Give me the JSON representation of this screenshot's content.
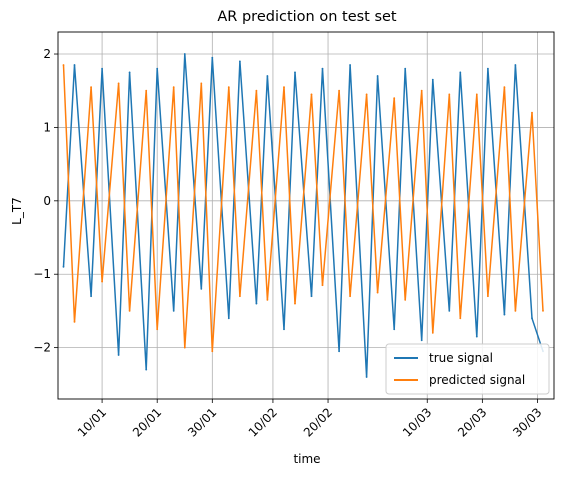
{
  "chart_data": {
    "type": "line",
    "title": "AR prediction on test set",
    "xlabel": "time",
    "ylabel": "L_T7",
    "ylim": [
      -2.7,
      2.3
    ],
    "xlim": [
      "2014-01-02",
      "2014-04-02"
    ],
    "grid": true,
    "legend_position": "lower right",
    "x_ticks": [
      {
        "date": "2014-01-10",
        "label": "10/01"
      },
      {
        "date": "2014-01-20",
        "label": "20/01"
      },
      {
        "date": "2014-01-30",
        "label": "30/01"
      },
      {
        "date": "2014-02-10",
        "label": "10/02"
      },
      {
        "date": "2014-02-20",
        "label": "20/02"
      },
      {
        "date": "2014-03-10",
        "label": "10/03"
      },
      {
        "date": "2014-03-20",
        "label": "20/03"
      },
      {
        "date": "2014-03-30",
        "label": "30/03"
      }
    ],
    "y_ticks": [
      {
        "value": 2,
        "label": "2"
      },
      {
        "value": 1,
        "label": "1"
      },
      {
        "value": 0,
        "label": "0"
      },
      {
        "value": -1,
        "label": "−1"
      },
      {
        "value": -2,
        "label": "−2"
      }
    ],
    "series": [
      {
        "name": "true signal",
        "color": "#1f77b4",
        "x": [
          "2014-01-03",
          "2014-01-05",
          "2014-01-08",
          "2014-01-10",
          "2014-01-13",
          "2014-01-15",
          "2014-01-18",
          "2014-01-20",
          "2014-01-23",
          "2014-01-25",
          "2014-01-28",
          "2014-01-30",
          "2014-02-02",
          "2014-02-04",
          "2014-02-07",
          "2014-02-09",
          "2014-02-12",
          "2014-02-14",
          "2014-02-17",
          "2014-02-19",
          "2014-02-22",
          "2014-02-24",
          "2014-02-27",
          "2014-03-01",
          "2014-03-04",
          "2014-03-06",
          "2014-03-09",
          "2014-03-11",
          "2014-03-14",
          "2014-03-16",
          "2014-03-19",
          "2014-03-21",
          "2014-03-24",
          "2014-03-26",
          "2014-03-29",
          "2014-03-31"
        ],
        "values": [
          -0.9,
          1.85,
          -1.3,
          1.8,
          -2.1,
          1.75,
          -2.3,
          1.8,
          -1.5,
          2.0,
          -1.2,
          1.95,
          -1.6,
          1.9,
          -1.4,
          1.7,
          -1.75,
          1.75,
          -1.3,
          1.8,
          -2.05,
          1.85,
          -2.4,
          1.7,
          -1.75,
          1.8,
          -1.9,
          1.65,
          -1.5,
          1.75,
          -1.85,
          1.8,
          -1.55,
          1.85,
          -1.6,
          -2.05
        ]
      },
      {
        "name": "predicted signal",
        "color": "#ff7f0e",
        "x": [
          "2014-01-03",
          "2014-01-05",
          "2014-01-08",
          "2014-01-10",
          "2014-01-13",
          "2014-01-15",
          "2014-01-18",
          "2014-01-20",
          "2014-01-23",
          "2014-01-25",
          "2014-01-28",
          "2014-01-30",
          "2014-02-02",
          "2014-02-04",
          "2014-02-07",
          "2014-02-09",
          "2014-02-12",
          "2014-02-14",
          "2014-02-17",
          "2014-02-19",
          "2014-02-22",
          "2014-02-24",
          "2014-02-27",
          "2014-03-01",
          "2014-03-04",
          "2014-03-06",
          "2014-03-09",
          "2014-03-11",
          "2014-03-14",
          "2014-03-16",
          "2014-03-19",
          "2014-03-21",
          "2014-03-24",
          "2014-03-26",
          "2014-03-29",
          "2014-03-31"
        ],
        "values": [
          1.85,
          -1.65,
          1.55,
          -1.1,
          1.6,
          -1.5,
          1.5,
          -1.75,
          1.55,
          -2.0,
          1.6,
          -2.05,
          1.55,
          -1.3,
          1.5,
          -1.35,
          1.55,
          -1.4,
          1.45,
          -1.15,
          1.5,
          -1.3,
          1.45,
          -1.25,
          1.4,
          -1.35,
          1.5,
          -1.8,
          1.45,
          -1.6,
          1.45,
          -1.3,
          1.55,
          -1.5,
          1.2,
          -1.5
        ]
      }
    ]
  }
}
